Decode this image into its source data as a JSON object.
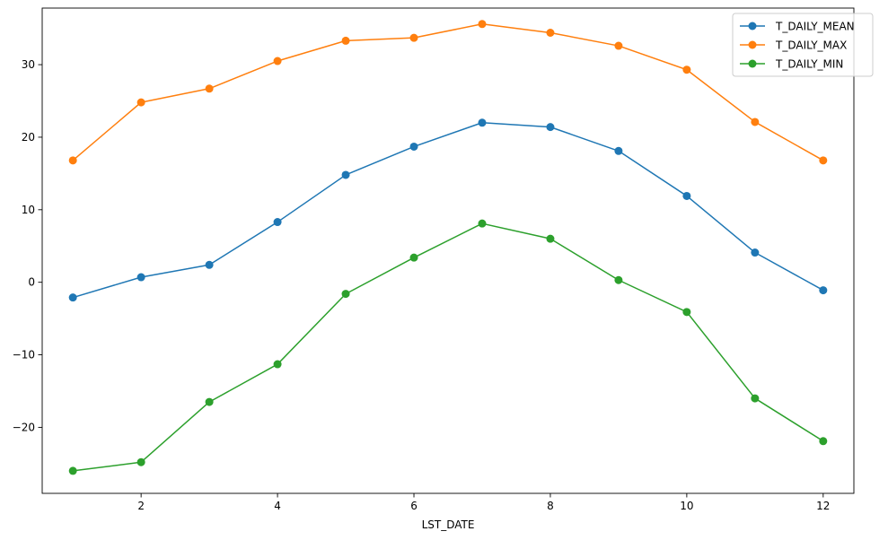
{
  "chart_data": {
    "type": "line",
    "x": [
      1,
      2,
      3,
      4,
      5,
      6,
      7,
      8,
      9,
      10,
      11,
      12
    ],
    "xlabel": "LST_DATE",
    "ylabel": "",
    "title": "",
    "xlim": [
      0.55,
      12.45
    ],
    "ylim": [
      -29.1,
      37.8
    ],
    "xticks": [
      2,
      4,
      6,
      8,
      10,
      12
    ],
    "yticks": [
      -20,
      -10,
      0,
      10,
      20,
      30
    ],
    "ytick_labels": [
      "−20",
      "−10",
      "0",
      "10",
      "20",
      "30"
    ],
    "grid": false,
    "legend_position": "top-right",
    "series": [
      {
        "name": "T_DAILY_MEAN",
        "color": "#1f77b4",
        "values": [
          -2.1,
          0.7,
          2.4,
          8.3,
          14.8,
          18.7,
          22.0,
          21.4,
          18.1,
          11.9,
          4.1,
          -1.1
        ]
      },
      {
        "name": "T_DAILY_MAX",
        "color": "#ff7f0e",
        "values": [
          16.8,
          24.8,
          26.7,
          30.5,
          33.3,
          33.7,
          35.6,
          34.4,
          32.6,
          29.3,
          22.1,
          16.8
        ]
      },
      {
        "name": "T_DAILY_MIN",
        "color": "#2ca02c",
        "values": [
          -26.0,
          -24.8,
          -16.5,
          -11.3,
          -1.6,
          3.4,
          8.1,
          6.0,
          0.3,
          -4.1,
          -16.0,
          -21.9
        ]
      }
    ]
  }
}
